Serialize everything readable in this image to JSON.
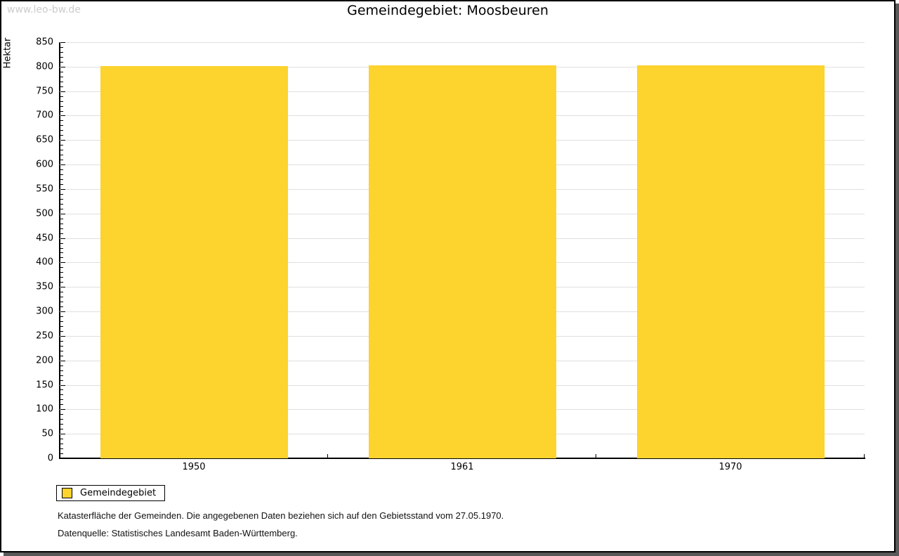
{
  "watermark": "www.leo-bw.de",
  "header": {
    "title": "Gemeindegebiet: Moosbeuren"
  },
  "colors": {
    "bar": "#fdd32d",
    "grid": "#e0e0e0",
    "axis": "#000000",
    "watermark": "#cccccc",
    "frame_shadow": "#595959"
  },
  "chart_data": {
    "type": "bar",
    "title": "Gemeindegebiet: Moosbeuren",
    "categories": [
      "1950",
      "1961",
      "1970"
    ],
    "series": [
      {
        "name": "Gemeindegebiet",
        "color": "#fdd32d",
        "values": [
          801,
          803,
          803
        ]
      }
    ],
    "xlabel": "",
    "ylabel": "Hektar",
    "ylim": [
      0,
      850
    ],
    "ytick_step": 50,
    "yminor_step": 10,
    "grid": true,
    "legend_position": "bottom-left"
  },
  "legend": {
    "items": [
      {
        "label": "Gemeindegebiet",
        "color": "#fdd32d"
      }
    ]
  },
  "footer": {
    "line1": "Katasterfläche der Gemeinden. Die angegebenen Daten beziehen sich auf den Gebietsstand vom 27.05.1970.",
    "line2": "Datenquelle: Statistisches Landesamt Baden-Württemberg."
  }
}
